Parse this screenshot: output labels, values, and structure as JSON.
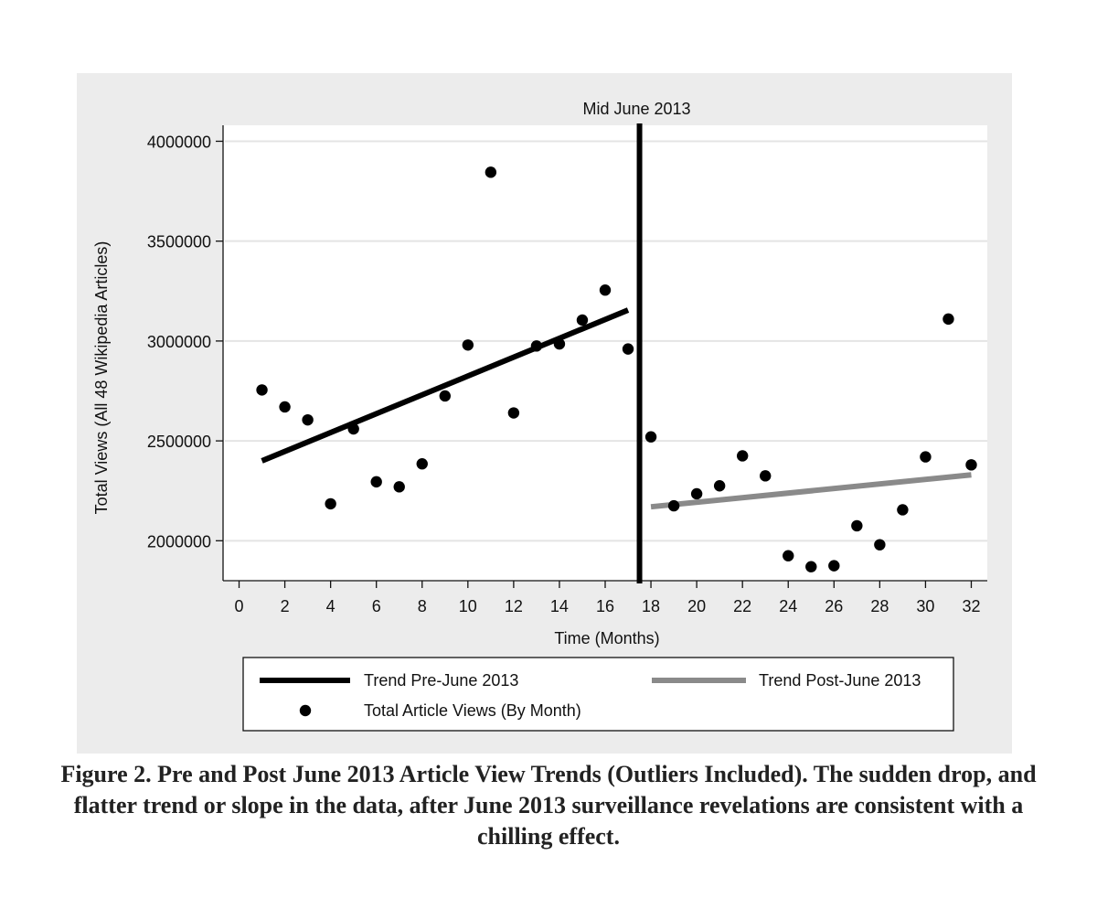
{
  "chart_data": {
    "type": "scatter",
    "xlabel": "Time (Months)",
    "ylabel": "Total Views (All 48 Wikipedia Articles)",
    "xlim": [
      -0.7,
      32.7
    ],
    "ylim": [
      1800000,
      4080000
    ],
    "x_ticks": [
      0,
      2,
      4,
      6,
      8,
      10,
      12,
      14,
      16,
      18,
      20,
      22,
      24,
      26,
      28,
      30,
      32
    ],
    "y_ticks": [
      2000000,
      2500000,
      3000000,
      3500000,
      4000000
    ],
    "x_tick_labels": [
      "0",
      "2",
      "4",
      "6",
      "8",
      "10",
      "12",
      "14",
      "16",
      "18",
      "20",
      "22",
      "24",
      "26",
      "28",
      "30",
      "32"
    ],
    "y_tick_labels": [
      "2000000",
      "2500000",
      "3000000",
      "3500000",
      "4000000"
    ],
    "grid": true,
    "annotation": {
      "label": "Mid June 2013",
      "x": 17.5
    },
    "series": [
      {
        "name": "Total Article Views (By Month)",
        "kind": "points",
        "color": "#000000",
        "x": [
          1,
          2,
          3,
          4,
          5,
          6,
          7,
          8,
          9,
          10,
          11,
          12,
          13,
          14,
          15,
          16,
          17,
          18,
          19,
          20,
          21,
          22,
          23,
          24,
          25,
          26,
          27,
          28,
          29,
          30,
          31,
          32
        ],
        "y": [
          2755000,
          2670000,
          2605000,
          2185000,
          2560000,
          2295000,
          2270000,
          2385000,
          2725000,
          2980000,
          3845000,
          2640000,
          2975000,
          2985000,
          3105000,
          3255000,
          2960000,
          2520000,
          2175000,
          2235000,
          2275000,
          2425000,
          2325000,
          1925000,
          1870000,
          1875000,
          2075000,
          1980000,
          2155000,
          2420000,
          3110000,
          2380000
        ]
      },
      {
        "name": "Trend Pre-June 2013",
        "kind": "line",
        "color": "#000000",
        "x": [
          1,
          17
        ],
        "y": [
          2400000,
          3155000
        ]
      },
      {
        "name": "Trend Post-June 2013",
        "kind": "line",
        "color": "#8a8a8a",
        "x": [
          18,
          32
        ],
        "y": [
          2170000,
          2330000
        ]
      }
    ],
    "legend": {
      "placement": "bottom",
      "entries": [
        {
          "label": "Trend Pre-June 2013",
          "kind": "line",
          "color": "#000000"
        },
        {
          "label": "Trend Post-June 2013",
          "kind": "line",
          "color": "#8a8a8a"
        },
        {
          "label": "Total Article Views (By Month)",
          "kind": "point",
          "color": "#000000"
        }
      ]
    }
  },
  "caption": "Figure 2. Pre and Post June 2013 Article View Trends (Outliers Included). The sudden drop, and flatter trend or slope in the data, after June 2013 surveillance revelations are consistent with a chilling effect."
}
